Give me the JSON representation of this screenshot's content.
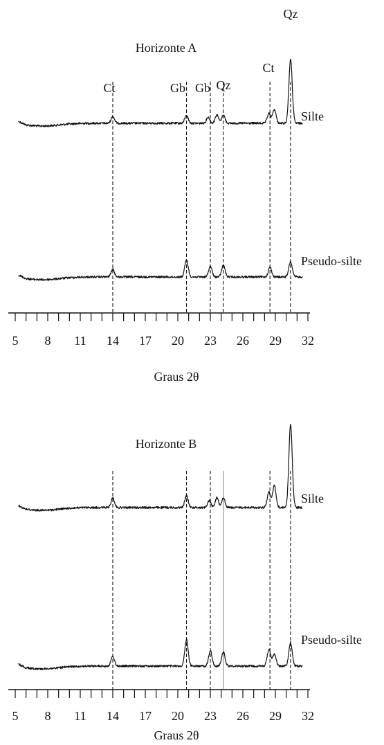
{
  "chart_data": [
    {
      "type": "line",
      "title": "Horizonte A",
      "xlabel": "Graus 2θ",
      "ylabel": "",
      "x_tick_labels": [
        "5",
        "8",
        "11",
        "14",
        "17",
        "20",
        "23",
        "26",
        "29",
        "32"
      ],
      "xlim": [
        5,
        32
      ],
      "reference_lines": [
        {
          "label": "Ct",
          "x": 14.0
        },
        {
          "label": "Gb",
          "x": 20.8
        },
        {
          "label": "Gb",
          "x": 23.0
        },
        {
          "label": "Qz",
          "x": 24.2
        },
        {
          "label": "Ct",
          "x": 28.5
        },
        {
          "label": "Qz",
          "x": 30.4
        }
      ],
      "series": [
        {
          "name": "Silte",
          "peaks": [
            [
              14.0,
              0.25
            ],
            [
              20.8,
              0.28
            ],
            [
              22.8,
              0.22
            ],
            [
              23.6,
              0.3
            ],
            [
              24.2,
              0.3
            ],
            [
              28.4,
              0.35
            ],
            [
              28.9,
              0.5
            ],
            [
              30.4,
              2.3
            ]
          ]
        },
        {
          "name": "Pseudo-silte",
          "peaks": [
            [
              14.0,
              0.28
            ],
            [
              20.8,
              0.62
            ],
            [
              23.0,
              0.38
            ],
            [
              24.2,
              0.42
            ],
            [
              28.5,
              0.35
            ],
            [
              30.4,
              0.55
            ]
          ]
        }
      ]
    },
    {
      "type": "line",
      "title": "Horizonte B",
      "xlabel": "Graus 2θ",
      "ylabel": "",
      "x_tick_labels": [
        "5",
        "8",
        "11",
        "14",
        "17",
        "20",
        "23",
        "26",
        "29",
        "32"
      ],
      "xlim": [
        5,
        32
      ],
      "reference_lines": [
        {
          "x": 14.0
        },
        {
          "x": 20.8
        },
        {
          "x": 23.0
        },
        {
          "x": 24.2
        },
        {
          "x": 28.5
        },
        {
          "x": 30.4
        }
      ],
      "series": [
        {
          "name": "Silte",
          "peaks": [
            [
              14.0,
              0.35
            ],
            [
              20.8,
              0.42
            ],
            [
              22.9,
              0.25
            ],
            [
              23.6,
              0.35
            ],
            [
              24.2,
              0.35
            ],
            [
              28.4,
              0.55
            ],
            [
              28.9,
              0.8
            ],
            [
              30.4,
              3.0
            ]
          ]
        },
        {
          "name": "Pseudo-silte",
          "peaks": [
            [
              14.0,
              0.35
            ],
            [
              20.8,
              0.95
            ],
            [
              23.0,
              0.55
            ],
            [
              24.2,
              0.5
            ],
            [
              28.4,
              0.6
            ],
            [
              28.9,
              0.45
            ],
            [
              30.4,
              0.85
            ]
          ]
        }
      ]
    }
  ]
}
